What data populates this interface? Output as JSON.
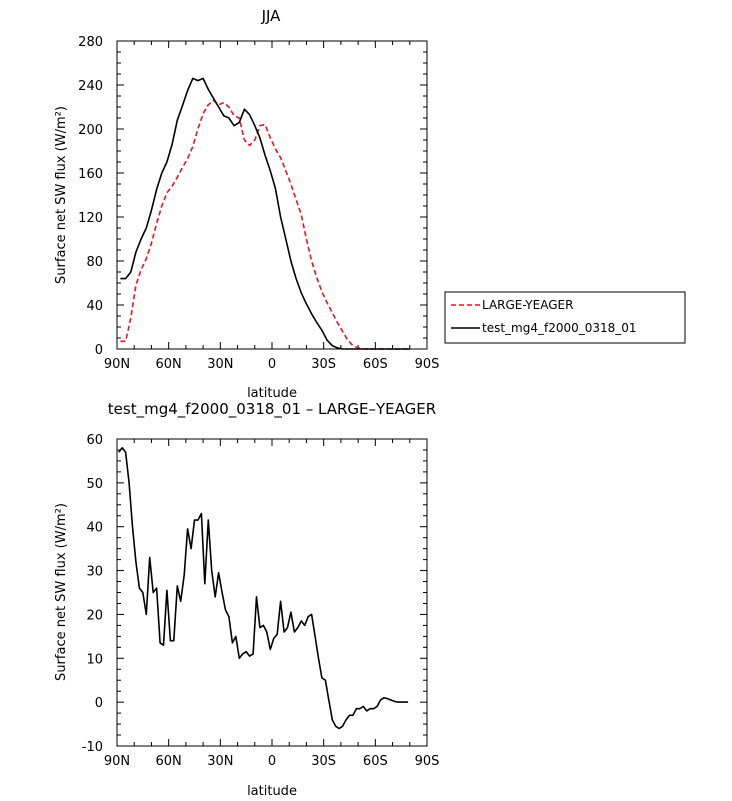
{
  "chart_data": [
    {
      "type": "line",
      "title": "JJA",
      "xlabel": "latitude",
      "ylabel": "Surface net SW flux (W/m²)",
      "ylim": [
        0,
        280
      ],
      "xlim": [
        90,
        -90
      ],
      "xticks": [
        90,
        60,
        30,
        0,
        -30,
        -60,
        -90
      ],
      "xtick_labels": [
        "90N",
        "60N",
        "30N",
        "0",
        "30S",
        "60S",
        "90S"
      ],
      "yticks": [
        0,
        40,
        80,
        120,
        160,
        200,
        240,
        280
      ],
      "legend_position": "right",
      "series": [
        {
          "name": "LARGE-YEAGER",
          "color": "#e8141e",
          "style": "dashed",
          "x": [
            88,
            85,
            82,
            79,
            76,
            73,
            70,
            67,
            64,
            61,
            58,
            55,
            52,
            49,
            46,
            43,
            40,
            37,
            34,
            31,
            28,
            25,
            22,
            19,
            16,
            13,
            10,
            7,
            4,
            1,
            -2,
            -5,
            -8,
            -11,
            -14,
            -17,
            -20,
            -23,
            -26,
            -29,
            -32,
            -35,
            -38,
            -41,
            -44,
            -47,
            -50,
            -53,
            -56,
            -59,
            -62,
            -65,
            -68,
            -71,
            -74,
            -77,
            -80
          ],
          "y": [
            7,
            7,
            28,
            58,
            72,
            82,
            96,
            114,
            130,
            142,
            148,
            156,
            165,
            173,
            184,
            200,
            214,
            222,
            226,
            222,
            224,
            220,
            212,
            210,
            190,
            185,
            190,
            203,
            204,
            192,
            182,
            174,
            162,
            150,
            136,
            122,
            100,
            80,
            65,
            52,
            42,
            33,
            24,
            16,
            8,
            3,
            1,
            0,
            0,
            0,
            0,
            0,
            0,
            0,
            0,
            0,
            0
          ]
        },
        {
          "name": "test_mg4_f2000_0318_01",
          "color": "#000000",
          "style": "solid",
          "x": [
            88,
            85,
            82,
            79,
            76,
            73,
            70,
            67,
            64,
            61,
            58,
            55,
            52,
            49,
            46,
            43,
            40,
            37,
            34,
            31,
            28,
            25,
            22,
            19,
            16,
            13,
            10,
            7,
            4,
            1,
            -2,
            -5,
            -8,
            -11,
            -14,
            -17,
            -20,
            -23,
            -26,
            -29,
            -32,
            -35,
            -38,
            -41,
            -44,
            -47,
            -50,
            -53,
            -56,
            -59,
            -62,
            -65,
            -68,
            -71,
            -74,
            -77,
            -80
          ],
          "y": [
            64,
            64,
            70,
            88,
            100,
            110,
            126,
            145,
            160,
            170,
            186,
            208,
            221,
            235,
            246,
            244,
            246,
            236,
            228,
            220,
            212,
            210,
            203,
            206,
            218,
            213,
            203,
            192,
            176,
            162,
            146,
            120,
            100,
            80,
            64,
            51,
            41,
            32,
            24,
            17,
            8,
            3,
            1,
            0,
            0,
            0,
            0,
            0,
            0,
            0,
            0,
            0,
            0,
            0,
            0,
            0,
            0
          ]
        }
      ]
    },
    {
      "type": "line",
      "title": "test_mg4_f2000_0318_01 – LARGE–YEAGER",
      "xlabel": "latitude",
      "ylabel": "Surface net SW flux (W/m²)",
      "ylim": [
        -10,
        60
      ],
      "xlim": [
        90,
        -90
      ],
      "xticks": [
        90,
        60,
        30,
        0,
        -30,
        -60,
        -90
      ],
      "xtick_labels": [
        "90N",
        "60N",
        "30N",
        "0",
        "30S",
        "60S",
        "90S"
      ],
      "yticks": [
        -10,
        0,
        10,
        20,
        30,
        40,
        50,
        60
      ],
      "series": [
        {
          "color": "#000000",
          "style": "solid",
          "x": [
            89,
            87,
            85,
            83,
            81,
            79,
            77,
            75,
            73,
            71,
            69,
            67,
            65,
            63,
            61,
            59,
            57,
            55,
            53,
            51,
            49,
            47,
            45,
            43,
            41,
            39,
            37,
            35,
            33,
            31,
            29,
            27,
            25,
            23,
            21,
            19,
            17,
            15,
            13,
            11,
            9,
            7,
            5,
            3,
            1,
            -1,
            -3,
            -5,
            -7,
            -9,
            -11,
            -13,
            -15,
            -17,
            -19,
            -21,
            -23,
            -25,
            -27,
            -29,
            -31,
            -33,
            -35,
            -37,
            -39,
            -41,
            -43,
            -45,
            -47,
            -49,
            -51,
            -53,
            -55,
            -57,
            -59,
            -61,
            -63,
            -65,
            -67,
            -69,
            -71,
            -73,
            -75,
            -77,
            -79
          ],
          "y": [
            57,
            58,
            57,
            50,
            40,
            32,
            26,
            25,
            20,
            33,
            25,
            26,
            13.5,
            13,
            25.5,
            14,
            14,
            26.5,
            23,
            29,
            39.5,
            35,
            41.5,
            41.5,
            43,
            27,
            41.5,
            30,
            24,
            29.5,
            25,
            21,
            19.5,
            13.5,
            15,
            10,
            11,
            11.5,
            10.5,
            11,
            24,
            17,
            17.5,
            16,
            12,
            14.5,
            15.5,
            23,
            16,
            17,
            20.5,
            16,
            17,
            18.5,
            17.5,
            19.5,
            20,
            15,
            10,
            5.5,
            5,
            0.5,
            -4,
            -5.5,
            -6,
            -5.5,
            -4,
            -3,
            -3,
            -1.5,
            -1.5,
            -1,
            -2,
            -1.5,
            -1.5,
            -1,
            0.5,
            1,
            0.8,
            0.5,
            0.2,
            0,
            0,
            0,
            0
          ]
        }
      ]
    }
  ]
}
